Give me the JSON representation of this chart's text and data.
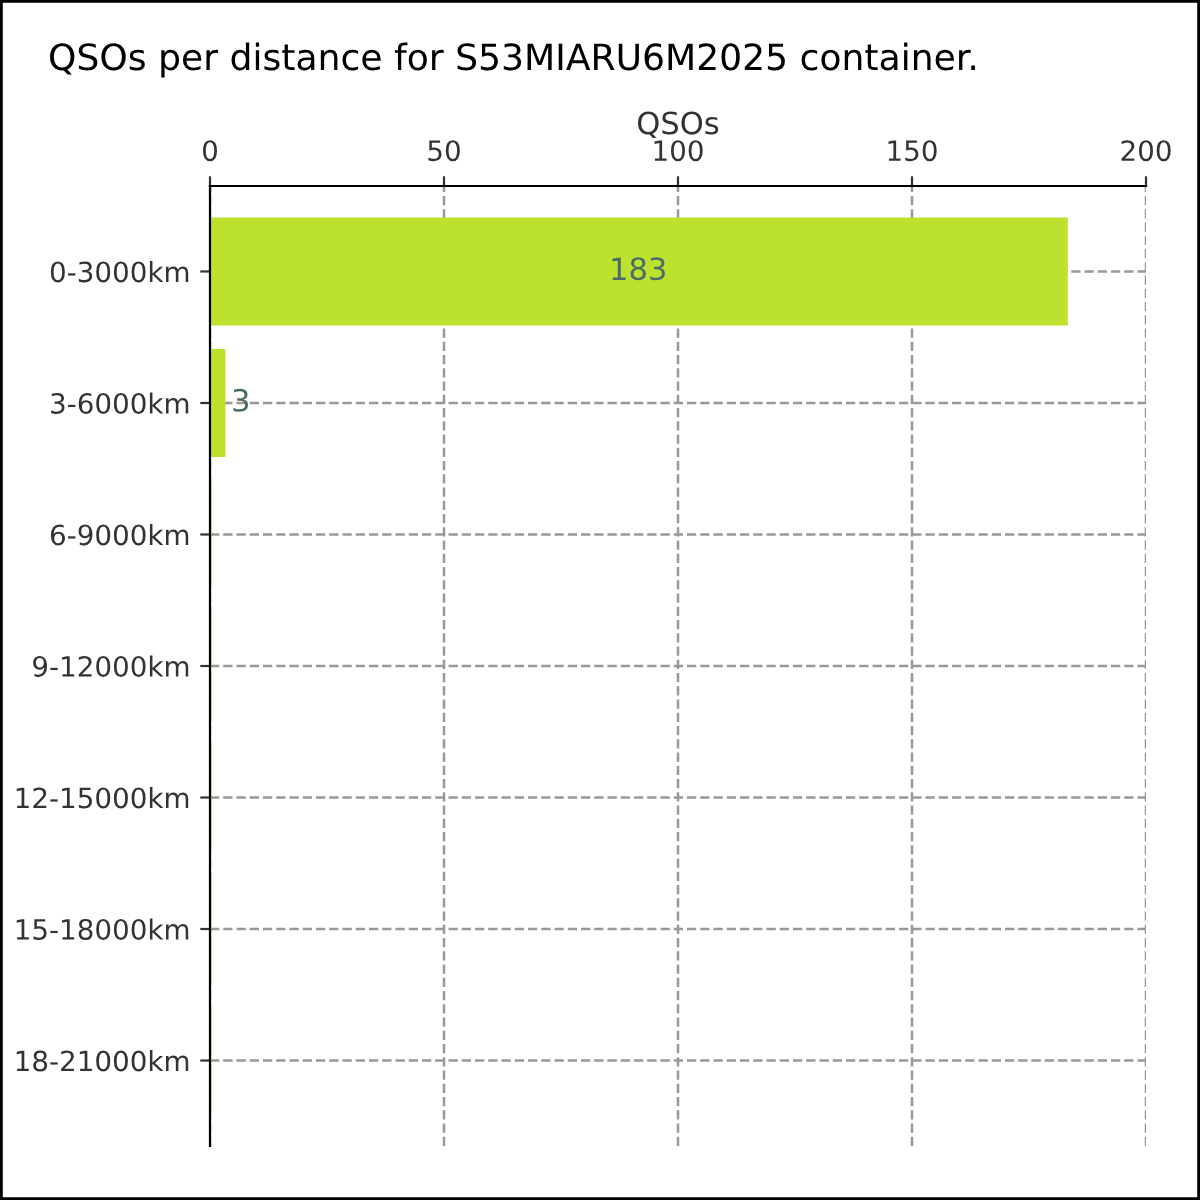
{
  "chart_data": {
    "type": "bar",
    "orientation": "horizontal",
    "title": "QSOs per distance for S53MIARU6M2025 container.",
    "xlabel": "QSOs",
    "categories": [
      "0-3000km",
      "3-6000km",
      "6-9000km",
      "9-12000km",
      "12-15000km",
      "15-18000km",
      "18-21000km"
    ],
    "series": [
      {
        "color": "#bce22e",
        "values": [
          183,
          3,
          0,
          0,
          0,
          0,
          0
        ],
        "value_labels": [
          "183",
          "3",
          null,
          null,
          null,
          null,
          null
        ]
      }
    ],
    "xlim": [
      0,
      200
    ],
    "xticks": [
      0,
      50,
      100,
      150,
      200
    ],
    "grid": true,
    "legend": false
  }
}
